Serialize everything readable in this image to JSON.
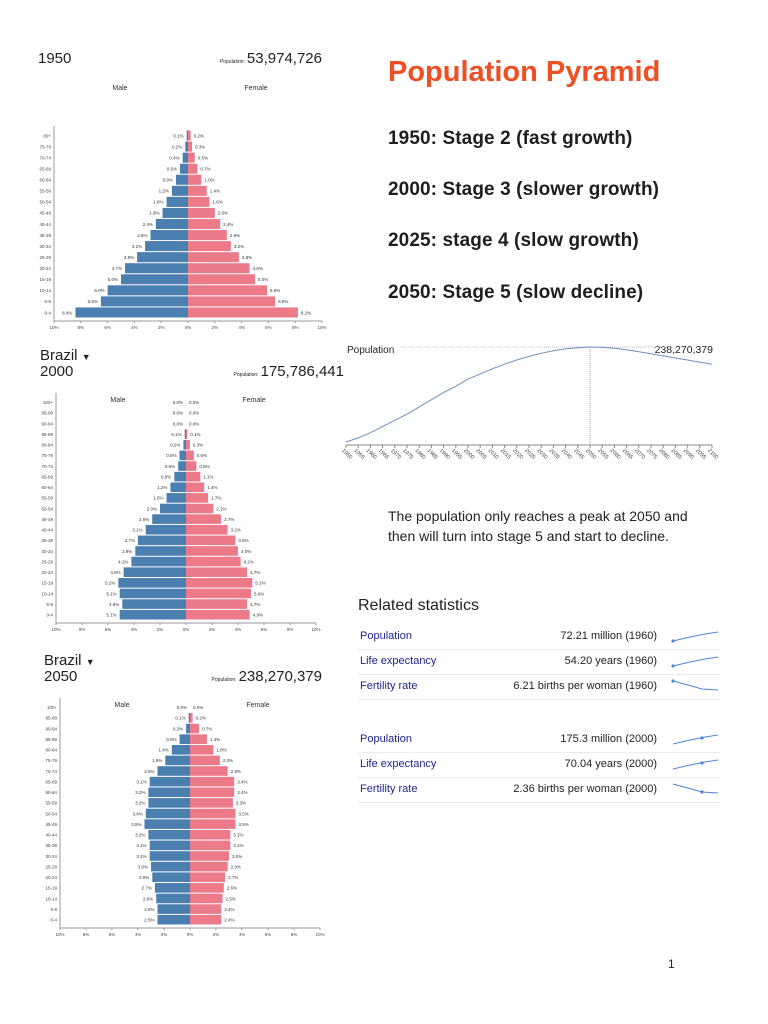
{
  "title": "Population Pyramid",
  "stages": [
    "1950: Stage 2 (fast growth)",
    "2000: Stage 3 (slower growth)",
    "2025: stage 4 (slow growth)",
    "2050: Stage 5 (slow decline)"
  ],
  "note": "The population only reaches a peak at 2050 and then will turn into stage 5 and start to decline.",
  "page_number": "1",
  "colors": {
    "male": "#4a7fb0",
    "female": "#ec7a8a",
    "title": "#f04e23",
    "link": "#1f1f8f",
    "line": "#6b93bf"
  },
  "pyramids": [
    {
      "country": "",
      "year": "1950",
      "population_label": "Population:",
      "population": "53,974,726"
    },
    {
      "country": "Brazil",
      "year": "2000",
      "population_label": "Population:",
      "population": "175,786,441"
    },
    {
      "country": "Brazil",
      "year": "2050",
      "population_label": "Population:",
      "population": "238,270,379"
    }
  ],
  "related": {
    "title": "Related statistics",
    "groups": [
      [
        {
          "label": "Population",
          "value": "72.21 million (1960)",
          "trend": "up"
        },
        {
          "label": "Life expectancy",
          "value": "54.20 years (1960)",
          "trend": "up"
        },
        {
          "label": "Fertility rate",
          "value": "6.21 births per woman (1960)",
          "trend": "down"
        }
      ],
      [
        {
          "label": "Population",
          "value": "175.3 million (2000)",
          "trend": "up"
        },
        {
          "label": "Life expectancy",
          "value": "70.04 years (2000)",
          "trend": "up"
        },
        {
          "label": "Fertility rate",
          "value": "2.36 births per woman (2000)",
          "trend": "down"
        }
      ]
    ]
  },
  "chart_data": [
    {
      "type": "bar",
      "orientation": "horizontal-pyramid",
      "xlabel_left": "Male",
      "xlabel_right": "Female",
      "xticks": [
        "10%",
        "8%",
        "6%",
        "4%",
        "2%",
        "0%",
        "2%",
        "4%",
        "6%",
        "8%",
        "10%"
      ],
      "xlim": [
        -10,
        10
      ],
      "categories": [
        "80+",
        "75-79",
        "70-74",
        "65-69",
        "60-64",
        "55-59",
        "50-54",
        "45-49",
        "40-44",
        "35-39",
        "30-34",
        "25-29",
        "20-24",
        "15-19",
        "10-14",
        "5-9",
        "0-4"
      ],
      "series": [
        {
          "name": "Male",
          "values": [
            0.1,
            0.2,
            0.4,
            0.6,
            0.9,
            1.2,
            1.6,
            1.9,
            2.4,
            2.8,
            3.2,
            3.8,
            4.7,
            5.0,
            6.0,
            6.5,
            8.4
          ]
        },
        {
          "name": "Female",
          "values": [
            0.2,
            0.3,
            0.5,
            0.7,
            1.0,
            1.4,
            1.6,
            2.0,
            2.4,
            2.9,
            3.2,
            3.8,
            4.6,
            5.0,
            5.9,
            6.5,
            8.2
          ]
        }
      ]
    },
    {
      "type": "bar",
      "orientation": "horizontal-pyramid",
      "xlabel_left": "Male",
      "xlabel_right": "Female",
      "xticks": [
        "10%",
        "8%",
        "6%",
        "4%",
        "2%",
        "0%",
        "2%",
        "4%",
        "6%",
        "8%",
        "10%"
      ],
      "xlim": [
        -10,
        10
      ],
      "categories": [
        "100+",
        "95-99",
        "90-94",
        "85-89",
        "80-84",
        "75-79",
        "70-74",
        "65-69",
        "60-64",
        "55-59",
        "50-54",
        "45-49",
        "40-44",
        "35-39",
        "30-34",
        "25-29",
        "20-24",
        "15-19",
        "10-14",
        "5-9",
        "0-4"
      ],
      "series": [
        {
          "name": "Male",
          "values": [
            0.0,
            0.0,
            0.0,
            0.1,
            0.2,
            0.5,
            0.6,
            0.9,
            1.2,
            1.5,
            2.0,
            2.6,
            3.1,
            3.7,
            3.9,
            4.2,
            4.8,
            5.2,
            5.1,
            4.9,
            5.1
          ]
        },
        {
          "name": "Female",
          "values": [
            0.0,
            0.0,
            0.0,
            0.1,
            0.3,
            0.6,
            0.8,
            1.1,
            1.4,
            1.7,
            2.1,
            2.7,
            3.2,
            3.8,
            4.0,
            4.2,
            4.7,
            5.1,
            5.0,
            4.7,
            4.9
          ]
        }
      ]
    },
    {
      "type": "bar",
      "orientation": "horizontal-pyramid",
      "xlabel_left": "Male",
      "xlabel_right": "Female",
      "xticks": [
        "10%",
        "8%",
        "6%",
        "4%",
        "2%",
        "0%",
        "2%",
        "4%",
        "6%",
        "8%",
        "10%"
      ],
      "xlim": [
        -10,
        10
      ],
      "categories": [
        "100+",
        "95-99",
        "90-94",
        "85-89",
        "80-84",
        "75-79",
        "70-74",
        "65-69",
        "60-64",
        "55-59",
        "50-54",
        "45-49",
        "40-44",
        "35-39",
        "30-34",
        "25-29",
        "20-24",
        "15-19",
        "10-14",
        "5-9",
        "0-4"
      ],
      "series": [
        {
          "name": "Male",
          "values": [
            0.0,
            0.1,
            0.3,
            0.8,
            1.4,
            1.9,
            2.5,
            3.1,
            3.2,
            3.2,
            3.4,
            3.5,
            3.2,
            3.1,
            3.1,
            3.0,
            2.9,
            2.7,
            2.6,
            2.5,
            2.5
          ]
        },
        {
          "name": "Female",
          "values": [
            0.0,
            0.2,
            0.7,
            1.3,
            1.8,
            2.3,
            2.9,
            3.4,
            3.4,
            3.3,
            3.5,
            3.5,
            3.1,
            3.1,
            3.0,
            2.9,
            2.7,
            2.6,
            2.5,
            2.4,
            2.4
          ]
        }
      ]
    },
    {
      "type": "line",
      "title": "Population",
      "highlight": {
        "x": 2050,
        "label": "238,270,379"
      },
      "x": [
        1950,
        1955,
        1960,
        1965,
        1970,
        1975,
        1980,
        1985,
        1990,
        1995,
        2000,
        2005,
        2010,
        2015,
        2020,
        2025,
        2030,
        2035,
        2040,
        2045,
        2050,
        2055,
        2060,
        2065,
        2070,
        2075,
        2080,
        2085,
        2090,
        2095,
        2100
      ],
      "xticks": [
        "1950",
        "1955",
        "1960",
        "1965",
        "1970",
        "1975",
        "1980",
        "1985",
        "1990",
        "1995",
        "2000",
        "2005",
        "2010",
        "2015",
        "2020",
        "2025",
        "2030",
        "2035",
        "2040",
        "2045",
        "2050",
        "2055",
        "2060",
        "2065",
        "2070",
        "2075",
        "2080",
        "2085",
        "2090",
        "2095",
        "2100"
      ],
      "series": [
        {
          "name": "Population",
          "unit": "millions",
          "values": [
            54,
            62,
            72,
            84,
            96,
            108,
            122,
            136,
            150,
            162,
            176,
            186,
            196,
            205,
            213,
            220,
            226,
            231,
            235,
            237,
            238.27,
            237.5,
            236,
            233,
            229,
            225,
            221,
            217,
            213,
            209,
            205
          ]
        }
      ]
    }
  ]
}
